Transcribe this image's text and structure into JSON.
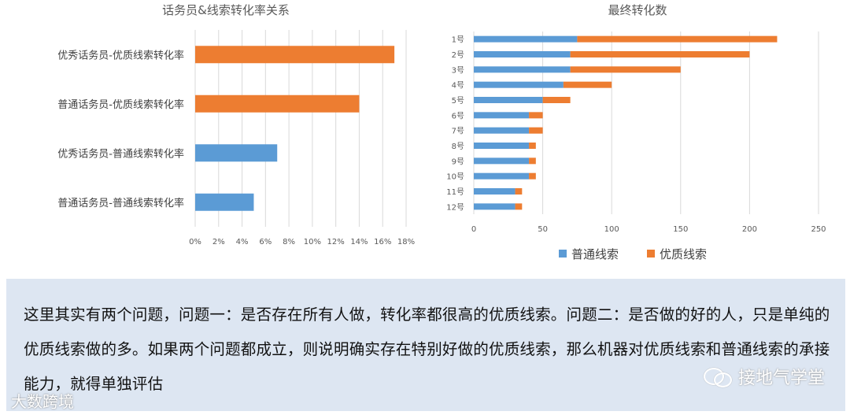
{
  "chart_data": [
    {
      "type": "bar",
      "orientation": "horizontal",
      "title": "话务员&线索转化率关系",
      "categories": [
        "优秀话务员-优质线索转化率",
        "普通话务员-优质线索转化率",
        "优秀话务员-普通线索转化率",
        "普通话务员-普通线索转化率"
      ],
      "values": [
        17,
        14,
        7,
        5
      ],
      "bar_colors": [
        "#ed7d31",
        "#ed7d31",
        "#5b9bd5",
        "#5b9bd5"
      ],
      "xlim": [
        0,
        18
      ],
      "xticks": [
        "0%",
        "2%",
        "4%",
        "6%",
        "8%",
        "10%",
        "12%",
        "14%",
        "16%",
        "18%"
      ],
      "grid": true
    },
    {
      "type": "bar",
      "orientation": "horizontal",
      "stacked": true,
      "title": "最终转化数",
      "categories": [
        "1号",
        "2号",
        "3号",
        "4号",
        "5号",
        "6号",
        "7号",
        "8号",
        "9号",
        "10号",
        "11号",
        "12号"
      ],
      "series": [
        {
          "name": "普通线索",
          "color": "#5b9bd5",
          "values": [
            75,
            70,
            70,
            65,
            50,
            40,
            40,
            40,
            40,
            40,
            30,
            30
          ]
        },
        {
          "name": "优质线索",
          "color": "#ed7d31",
          "values": [
            145,
            130,
            80,
            35,
            20,
            10,
            10,
            5,
            5,
            5,
            5,
            5
          ]
        }
      ],
      "xlim": [
        0,
        250
      ],
      "xticks": [
        "0",
        "50",
        "100",
        "150",
        "200",
        "250"
      ],
      "legend": "bottom",
      "grid": true
    }
  ],
  "note": {
    "text": "这里其实有两个问题，问题一：是否存在所有人做，转化率都很高的优质线索。问题二：是否做的好的人，只是单纯的优质线索做的多。如果两个问题都成立，则说明确实存在特别好做的优质线索，那么机器对优质线索和普通线索的承接能力，就得单独评估"
  },
  "watermarks": {
    "right": "接地气学堂",
    "left": "大数跨境"
  }
}
